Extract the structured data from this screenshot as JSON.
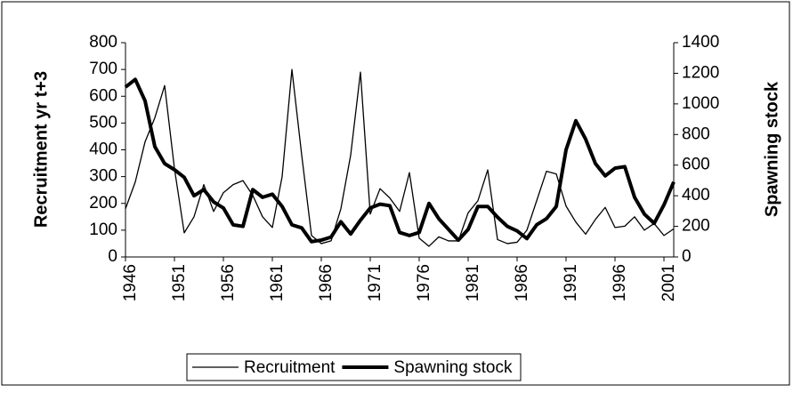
{
  "chart_data": {
    "type": "line",
    "x": [
      1946,
      1947,
      1948,
      1949,
      1950,
      1951,
      1952,
      1953,
      1954,
      1955,
      1956,
      1957,
      1958,
      1959,
      1960,
      1961,
      1962,
      1963,
      1964,
      1965,
      1966,
      1967,
      1968,
      1969,
      1970,
      1971,
      1972,
      1973,
      1974,
      1975,
      1976,
      1977,
      1978,
      1979,
      1980,
      1981,
      1982,
      1983,
      1984,
      1985,
      1986,
      1987,
      1988,
      1989,
      1990,
      1991,
      1992,
      1993,
      1994,
      1995,
      1996,
      1997,
      1998,
      1999,
      2000,
      2001,
      2002
    ],
    "y_label": "Recruitment yr t+3",
    "y2_label": "Spawning stock",
    "xlim": [
      1946,
      2002
    ],
    "xticks": [
      1946,
      1951,
      1956,
      1961,
      1966,
      1971,
      1976,
      1981,
      1986,
      1991,
      1996,
      2001
    ],
    "ylim": [
      0,
      800
    ],
    "yticks": [
      0,
      100,
      200,
      300,
      400,
      500,
      600,
      700,
      800
    ],
    "y2lim": [
      0,
      1400
    ],
    "y2ticks": [
      0,
      200,
      400,
      600,
      800,
      1000,
      1200,
      1400
    ],
    "legend": "bottom",
    "series": [
      {
        "name": "Recruitment",
        "color": "#000000",
        "width": 1.3,
        "values": [
          180,
          280,
          430,
          520,
          640,
          330,
          90,
          150,
          270,
          170,
          240,
          270,
          285,
          230,
          150,
          110,
          300,
          700,
          380,
          80,
          50,
          60,
          180,
          380,
          690,
          160,
          255,
          220,
          170,
          315,
          70,
          40,
          75,
          60,
          60,
          165,
          210,
          325,
          65,
          50,
          55,
          100,
          210,
          320,
          310,
          190,
          130,
          85,
          140,
          185,
          110,
          115,
          150,
          100,
          125,
          80,
          105
        ]
      },
      {
        "name": "Spawning stock",
        "color": "#000000",
        "width": 4,
        "axis": "y2",
        "values": [
          1110,
          1160,
          1020,
          720,
          610,
          570,
          520,
          400,
          440,
          360,
          320,
          210,
          200,
          440,
          390,
          410,
          330,
          210,
          190,
          100,
          110,
          130,
          230,
          150,
          240,
          320,
          345,
          335,
          160,
          140,
          160,
          350,
          250,
          180,
          110,
          180,
          330,
          330,
          260,
          200,
          170,
          120,
          210,
          250,
          330,
          700,
          890,
          770,
          610,
          530,
          580,
          590,
          390,
          280,
          220,
          340,
          490
        ]
      }
    ]
  }
}
